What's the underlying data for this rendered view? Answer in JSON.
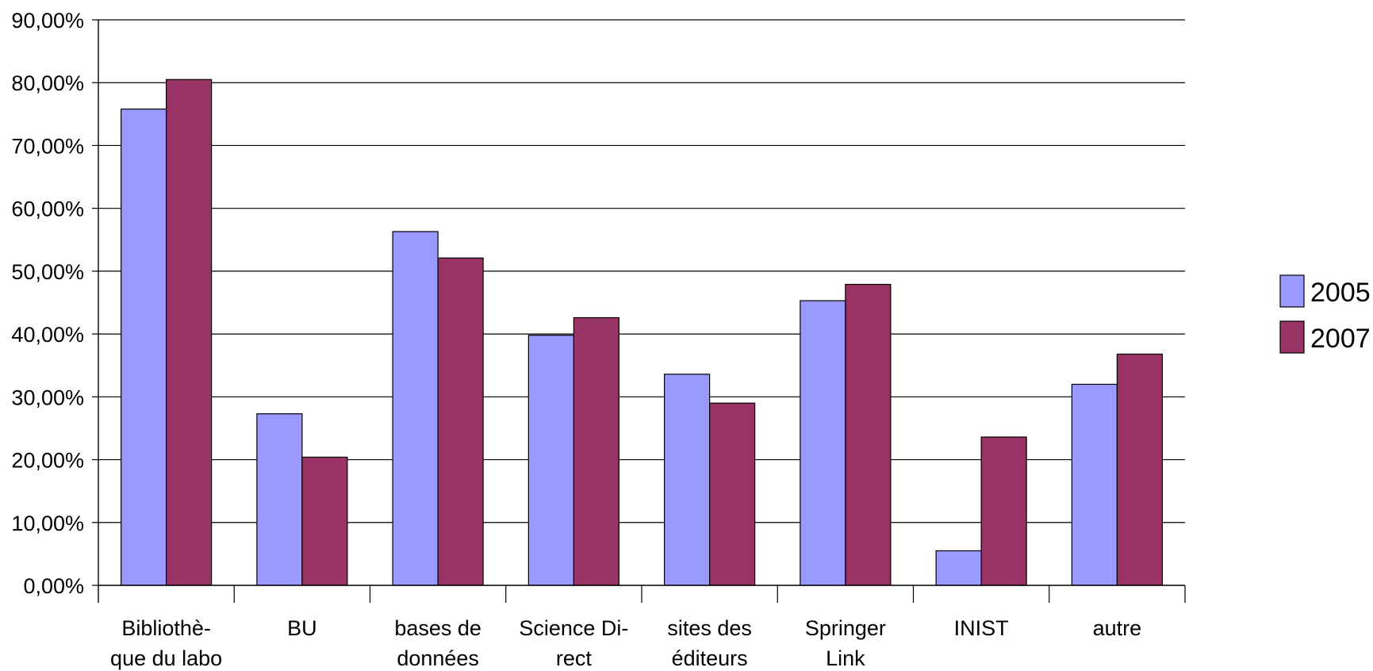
{
  "chart_data": {
    "type": "bar",
    "categories": [
      "Bibliothè-\nque du labo",
      "BU",
      "bases de\ndonnées",
      "Science Di-\nrect",
      "sites des\néditeurs",
      "Springer\nLink",
      "INIST",
      "autre"
    ],
    "series": [
      {
        "name": "2005",
        "color": "#9999ff",
        "values": [
          75.8,
          27.3,
          56.3,
          39.8,
          33.6,
          45.3,
          5.5,
          32.0
        ]
      },
      {
        "name": "2007",
        "color": "#993366",
        "values": [
          80.5,
          20.4,
          52.1,
          42.6,
          29.0,
          47.9,
          23.6,
          36.8
        ]
      }
    ],
    "y_ticks": [
      "0,00%",
      "10,00%",
      "20,00%",
      "30,00%",
      "40,00%",
      "50,00%",
      "60,00%",
      "70,00%",
      "80,00%",
      "90,00%"
    ],
    "ylim": [
      0,
      90
    ],
    "grid": true,
    "legend": "right"
  }
}
